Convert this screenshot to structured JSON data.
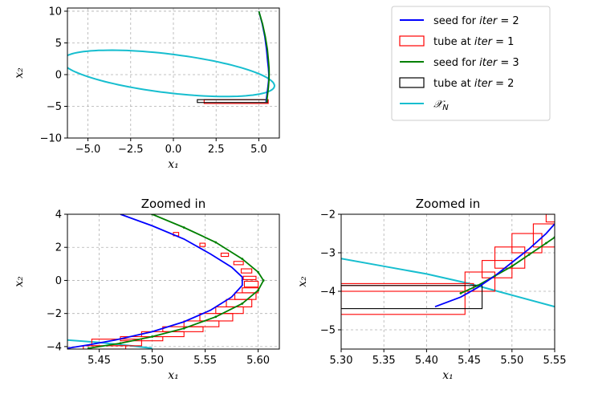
{
  "chart_data": [
    {
      "type": "line",
      "title": "",
      "xlabel": "x₁",
      "ylabel": "x₂",
      "xlim": [
        -6.2,
        6.2
      ],
      "ylim": [
        -10,
        10.5
      ],
      "xticks": [
        -5.0,
        -2.5,
        0.0,
        2.5,
        5.0
      ],
      "xtick_labels": [
        "−5.0",
        "−2.5",
        "0.0",
        "2.5",
        "5.0"
      ],
      "yticks": [
        -10,
        -5,
        0,
        5,
        10
      ],
      "ytick_labels": [
        "−10",
        "−5",
        "0",
        "5",
        "10"
      ],
      "grid": true,
      "ellipse_XN": {
        "center": [
          -0.3,
          0.2
        ],
        "semi_a": 6.6,
        "semi_b": 2.9,
        "rotation_deg": -22
      },
      "series": [
        {
          "name": "seed for iter = 2",
          "color": "#0000ff",
          "x": [
            5.0,
            5.2,
            5.35,
            5.45,
            5.52,
            5.56,
            5.585,
            5.57,
            5.53,
            5.48,
            5.42
          ],
          "y": [
            10.0,
            8.0,
            6.0,
            4.0,
            2.0,
            1.0,
            0.0,
            -1.0,
            -2.0,
            -3.0,
            -4.3
          ]
        },
        {
          "name": "seed for iter = 3",
          "color": "#008000",
          "x": [
            5.0,
            5.22,
            5.38,
            5.5,
            5.57,
            5.6,
            5.605,
            5.59,
            5.56,
            5.52,
            5.46
          ],
          "y": [
            10.0,
            8.0,
            6.0,
            4.0,
            2.0,
            1.0,
            0.0,
            -1.0,
            -2.0,
            -3.0,
            -4.3
          ]
        }
      ],
      "tubes": [
        {
          "name": "tube at iter = 1",
          "color": "#ff0000",
          "x0": 1.8,
          "x1": 5.55,
          "y0": -4.55,
          "y1": -3.95
        },
        {
          "name": "tube at iter = 2",
          "color": "#000000",
          "x0": 1.4,
          "x1": 5.5,
          "y0": -4.4,
          "y1": -3.95
        }
      ]
    },
    {
      "type": "line",
      "title": "Zoomed in",
      "xlabel": "x₁",
      "ylabel": "x₂",
      "xlim": [
        5.42,
        5.62
      ],
      "ylim": [
        -4.15,
        4.0
      ],
      "xticks": [
        5.45,
        5.5,
        5.55,
        5.6
      ],
      "xtick_labels": [
        "5.45",
        "5.50",
        "5.55",
        "5.60"
      ],
      "yticks": [
        -4,
        -2,
        0,
        2,
        4
      ],
      "ytick_labels": [
        "−4",
        "−2",
        "0",
        "2",
        "4"
      ],
      "grid": true,
      "blue": {
        "x": [
          5.47,
          5.5,
          5.53,
          5.555,
          5.575,
          5.585,
          5.585,
          5.575,
          5.555,
          5.53,
          5.5,
          5.465,
          5.44,
          5.42
        ],
        "y": [
          4.0,
          3.3,
          2.5,
          1.6,
          0.8,
          0.2,
          -0.3,
          -1.0,
          -1.8,
          -2.5,
          -3.1,
          -3.6,
          -3.9,
          -4.1
        ]
      },
      "green": {
        "x": [
          5.5,
          5.53,
          5.56,
          5.585,
          5.6,
          5.605,
          5.6,
          5.585,
          5.56,
          5.53,
          5.5,
          5.47,
          5.44
        ],
        "y": [
          4.0,
          3.2,
          2.3,
          1.3,
          0.5,
          0.0,
          -0.6,
          -1.4,
          -2.2,
          -2.9,
          -3.4,
          -3.8,
          -4.1
        ]
      },
      "cyan": {
        "x": [
          5.42,
          5.45,
          5.48,
          5.5
        ],
        "y": [
          -3.6,
          -3.75,
          -3.95,
          -4.1
        ]
      },
      "red_boxes": [
        {
          "x0": 5.52,
          "x1": 5.525,
          "y0": 2.7,
          "y1": 2.9
        },
        {
          "x0": 5.545,
          "x1": 5.55,
          "y0": 2.05,
          "y1": 2.25
        },
        {
          "x0": 5.565,
          "x1": 5.572,
          "y0": 1.45,
          "y1": 1.65
        },
        {
          "x0": 5.577,
          "x1": 5.586,
          "y0": 0.95,
          "y1": 1.15
        },
        {
          "x0": 5.584,
          "x1": 5.594,
          "y0": 0.45,
          "y1": 0.7
        },
        {
          "x0": 5.586,
          "x1": 5.598,
          "y0": 0.05,
          "y1": 0.25
        },
        {
          "x0": 5.587,
          "x1": 5.6,
          "y0": -0.4,
          "y1": -0.05
        },
        {
          "x0": 5.585,
          "x1": 5.6,
          "y0": -0.75,
          "y1": -0.45
        },
        {
          "x0": 5.578,
          "x1": 5.598,
          "y0": -1.15,
          "y1": -0.75
        },
        {
          "x0": 5.57,
          "x1": 5.594,
          "y0": -1.6,
          "y1": -1.15
        },
        {
          "x0": 5.56,
          "x1": 5.586,
          "y0": -2.0,
          "y1": -1.6
        },
        {
          "x0": 5.545,
          "x1": 5.576,
          "y0": -2.45,
          "y1": -2.0
        },
        {
          "x0": 5.53,
          "x1": 5.563,
          "y0": -2.8,
          "y1": -2.45
        },
        {
          "x0": 5.51,
          "x1": 5.548,
          "y0": -3.1,
          "y1": -2.8
        },
        {
          "x0": 5.49,
          "x1": 5.53,
          "y0": -3.4,
          "y1": -3.1
        },
        {
          "x0": 5.47,
          "x1": 5.51,
          "y0": -3.65,
          "y1": -3.4
        },
        {
          "x0": 5.443,
          "x1": 5.49,
          "y0": -3.95,
          "y1": -3.55
        },
        {
          "x0": 5.435,
          "x1": 5.475,
          "y0": -4.15,
          "y1": -3.95
        }
      ]
    },
    {
      "type": "line",
      "title": "Zoomed in",
      "xlabel": "x₁",
      "ylabel": "x₂",
      "xlim": [
        5.3,
        5.55
      ],
      "ylim": [
        -5.5,
        -2.0
      ],
      "xticks": [
        5.3,
        5.35,
        5.4,
        5.45,
        5.5,
        5.55
      ],
      "xtick_labels": [
        "5.30",
        "5.35",
        "5.40",
        "5.45",
        "5.50",
        "5.55"
      ],
      "yticks": [
        -5,
        -4,
        -3,
        -2
      ],
      "ytick_labels": [
        "−5",
        "−4",
        "−3",
        "−2"
      ],
      "grid": true,
      "blue": {
        "x": [
          5.41,
          5.44,
          5.46,
          5.48,
          5.5,
          5.52,
          5.54,
          5.55
        ],
        "y": [
          -4.4,
          -4.15,
          -3.9,
          -3.6,
          -3.25,
          -2.9,
          -2.5,
          -2.25
        ]
      },
      "green": {
        "x": [
          5.44,
          5.46,
          5.48,
          5.5,
          5.52,
          5.54,
          5.55
        ],
        "y": [
          -4.05,
          -3.85,
          -3.6,
          -3.35,
          -3.05,
          -2.75,
          -2.6
        ]
      },
      "cyan": {
        "x": [
          5.3,
          5.35,
          5.4,
          5.45,
          5.5,
          5.55
        ],
        "y": [
          -3.15,
          -3.35,
          -3.55,
          -3.8,
          -4.1,
          -4.4
        ]
      },
      "red_boxes": [
        {
          "x0": 5.3,
          "x1": 5.445,
          "y0": -4.6,
          "y1": -3.85
        },
        {
          "x0": 5.3,
          "x1": 5.455,
          "y0": -4.0,
          "y1": -3.8
        },
        {
          "x0": 5.445,
          "x1": 5.48,
          "y0": -4.0,
          "y1": -3.5
        },
        {
          "x0": 5.465,
          "x1": 5.5,
          "y0": -3.65,
          "y1": -3.2
        },
        {
          "x0": 5.48,
          "x1": 5.515,
          "y0": -3.4,
          "y1": -2.85
        },
        {
          "x0": 5.5,
          "x1": 5.535,
          "y0": -3.0,
          "y1": -2.5
        },
        {
          "x0": 5.525,
          "x1": 5.555,
          "y0": -2.85,
          "y1": -2.25
        },
        {
          "x0": 5.54,
          "x1": 5.555,
          "y0": -2.2,
          "y1": -2.0
        }
      ],
      "black_boxes": [
        {
          "x0": 5.3,
          "x1": 5.465,
          "y0": -4.45,
          "y1": -3.85
        }
      ]
    }
  ],
  "legend": {
    "placement": "top-right",
    "entries": [
      {
        "label": "seed for iter = 2",
        "label_plain": "seed for ",
        "label_italic": "iter",
        "label_tail": " = 2",
        "kind": "line",
        "color": "#0000ff"
      },
      {
        "label": "tube at iter = 1",
        "label_plain": "tube at ",
        "label_italic": "iter",
        "label_tail": " = 1",
        "kind": "box",
        "color": "#ff0000"
      },
      {
        "label": "seed for iter = 3",
        "label_plain": "seed for ",
        "label_italic": "iter",
        "label_tail": " = 3",
        "kind": "line",
        "color": "#008000"
      },
      {
        "label": "tube at iter = 2",
        "label_plain": "tube at ",
        "label_italic": "iter",
        "label_tail": " = 2",
        "kind": "box",
        "color": "#000000"
      },
      {
        "label": "𝒳N",
        "label_plain": "",
        "label_italic": "𝒳",
        "label_tail": "N",
        "kind": "line",
        "color": "#17becf"
      }
    ]
  }
}
